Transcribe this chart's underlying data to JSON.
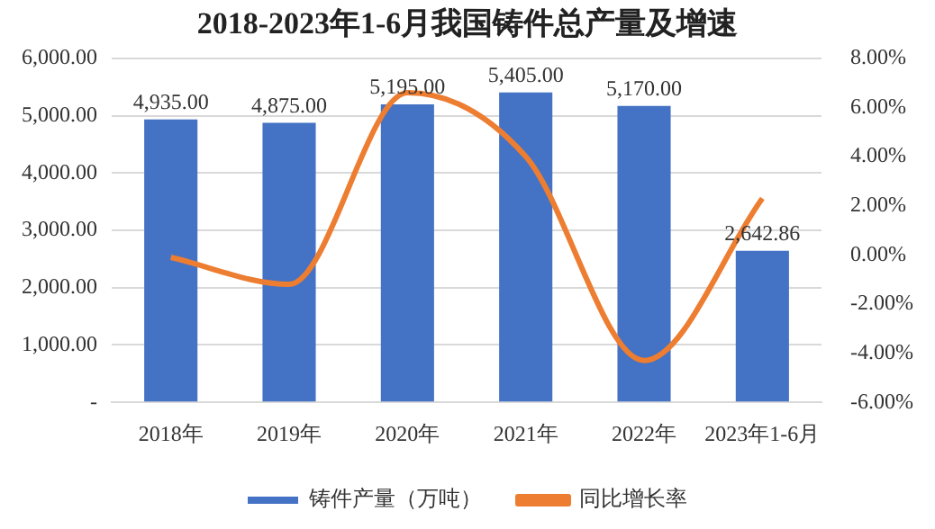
{
  "chart_data": {
    "type": "bar",
    "title": "2018-2023年1-6月我国铸件总产量及增速",
    "categories": [
      "2018年",
      "2019年",
      "2020年",
      "2021年",
      "2022年",
      "2023年1-6月"
    ],
    "series": [
      {
        "name": "铸件产量（万吨）",
        "color": "#4472c4",
        "values": [
          4935,
          4875,
          5195,
          5405,
          5170,
          2642.86
        ],
        "value_labels": [
          "4,935.00",
          "4,875.00",
          "5,195.00",
          "5,405.00",
          "5,170.00",
          "2,642.86"
        ]
      },
      {
        "name": "同比增长率",
        "type": "line",
        "axis": "y2",
        "color": "#ed7d31",
        "values": [
          -0.1,
          -1.2,
          6.6,
          4.0,
          -4.3,
          2.3
        ]
      }
    ],
    "ylim": [
      0,
      6000
    ],
    "yticks": [
      {
        "value": 0,
        "label": "-"
      },
      {
        "value": 1000,
        "label": "1,000.00"
      },
      {
        "value": 2000,
        "label": "2,000.00"
      },
      {
        "value": 3000,
        "label": "3,000.00"
      },
      {
        "value": 4000,
        "label": "4,000.00"
      },
      {
        "value": 5000,
        "label": "5,000.00"
      },
      {
        "value": 6000,
        "label": "6,000.00"
      }
    ],
    "y2lim": [
      -6,
      8
    ],
    "y2ticks": [
      {
        "value": -6,
        "label": "-6.00%"
      },
      {
        "value": -4,
        "label": "-4.00%"
      },
      {
        "value": -2,
        "label": "-2.00%"
      },
      {
        "value": 0,
        "label": "0.00%"
      },
      {
        "value": 2,
        "label": "2.00%"
      },
      {
        "value": 4,
        "label": "4.00%"
      },
      {
        "value": 6,
        "label": "6.00%"
      },
      {
        "value": 8,
        "label": "8.00%"
      }
    ],
    "grid": "y",
    "legend": "bottom",
    "marker": "none"
  }
}
